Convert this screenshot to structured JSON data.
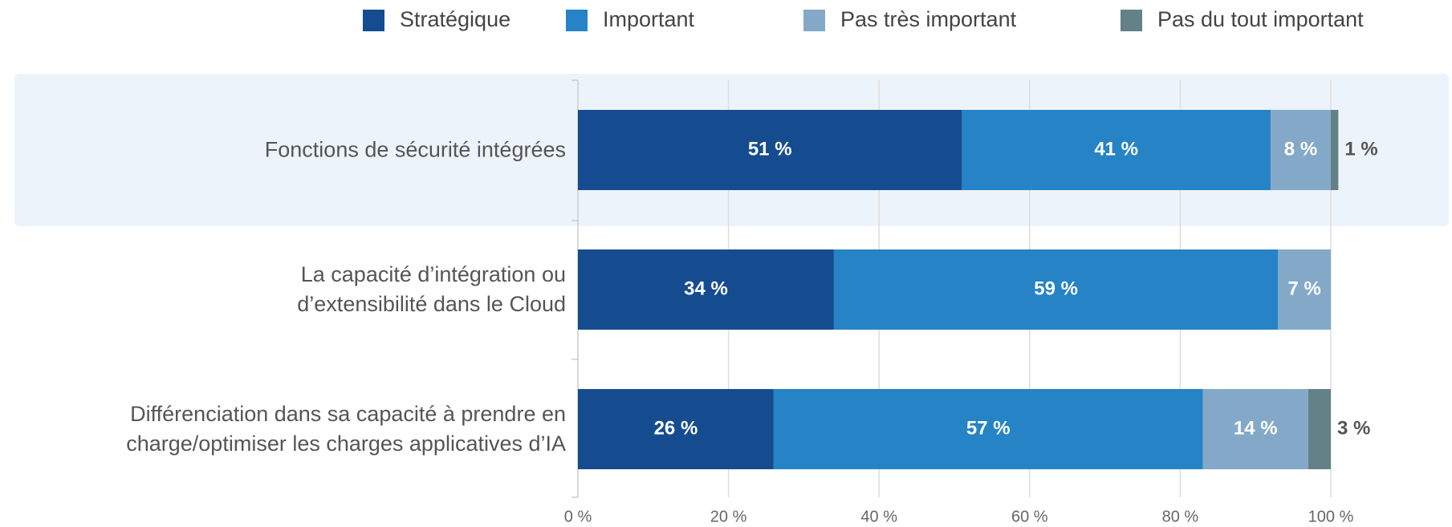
{
  "chart_data": {
    "type": "stacked_barh",
    "categories": [
      "Fonctions de sécurité intégrées",
      "La capacité d’intégration ou\nd’extensibilité dans le Cloud",
      "Différenciation dans sa capacité à prendre en\ncharge/optimiser les charges applicatives d’IA"
    ],
    "series": [
      {
        "name": "Stratégique",
        "color": "#154c8f",
        "values": [
          51,
          34,
          26
        ],
        "value_labels": [
          "51 %",
          "34 %",
          "26 %"
        ]
      },
      {
        "name": "Important",
        "color": "#2583c6",
        "values": [
          41,
          59,
          57
        ],
        "value_labels": [
          "41 %",
          "59 %",
          "57 %"
        ]
      },
      {
        "name": "Pas très important",
        "color": "#84a9c8",
        "values": [
          8,
          7,
          14
        ],
        "value_labels": [
          "8 %",
          "7 %",
          "14 %"
        ]
      },
      {
        "name": "Pas du tout important",
        "color": "#648187",
        "values": [
          1,
          null,
          3
        ],
        "value_labels": [
          "1 %",
          null,
          "3 %"
        ]
      }
    ],
    "xlim": [
      0,
      100
    ],
    "xticks": [
      {
        "value": 0,
        "label": "0 %"
      },
      {
        "value": 20,
        "label": "20 %"
      },
      {
        "value": 40,
        "label": "40 %"
      },
      {
        "value": 60,
        "label": "60 %"
      },
      {
        "value": 80,
        "label": "80 %"
      },
      {
        "value": 100,
        "label": "100 %"
      }
    ],
    "grid": true,
    "legend": "top"
  }
}
